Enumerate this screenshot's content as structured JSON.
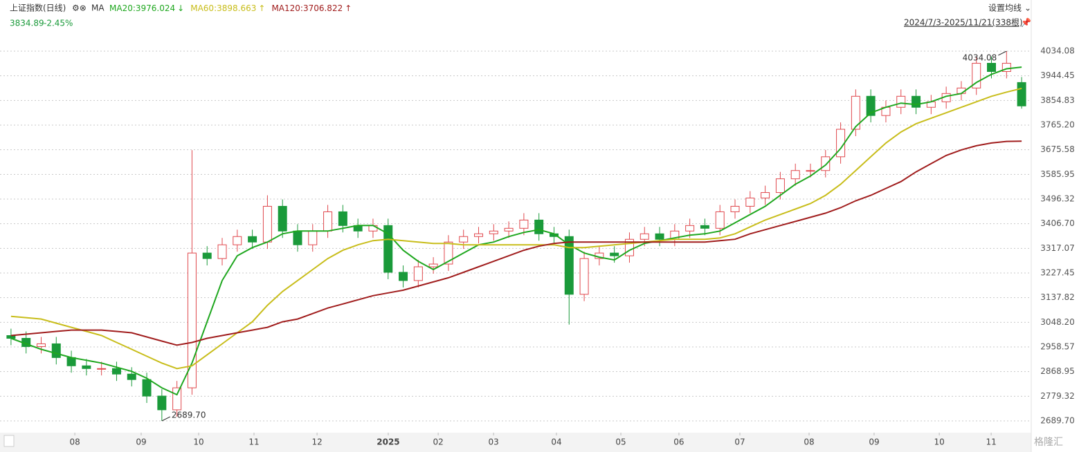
{
  "chart_data": {
    "type": "candlestick",
    "title": "上证指数(日线)",
    "ma_label": "MA",
    "price": 3834.89,
    "change": {
      "value": -2.45,
      "label": "-2.45%"
    },
    "settings_button": "设置均线",
    "date_range": "2024/7/3-2025/11/21(338根)",
    "watermark": "格隆汇",
    "up_color": "#e0474c",
    "down_color": "#1a9a3a",
    "grid": true,
    "xlim": [
      0,
      68
    ],
    "xticks": [
      {
        "value": 4.73,
        "label": "08"
      },
      {
        "value": 9.13,
        "label": "09"
      },
      {
        "value": 12.94,
        "label": "10"
      },
      {
        "value": 16.61,
        "label": "11"
      },
      {
        "value": 20.79,
        "label": "12"
      },
      {
        "value": 25.51,
        "label": "2025"
      },
      {
        "value": 28.82,
        "label": "02"
      },
      {
        "value": 32.49,
        "label": "03"
      },
      {
        "value": 36.66,
        "label": "04"
      },
      {
        "value": 40.93,
        "label": "05"
      },
      {
        "value": 44.78,
        "label": "06"
      },
      {
        "value": 48.82,
        "label": "07"
      },
      {
        "value": 53.41,
        "label": "08"
      },
      {
        "value": 57.72,
        "label": "09"
      },
      {
        "value": 62.04,
        "label": "10"
      },
      {
        "value": 65.48,
        "label": "11"
      }
    ],
    "ylim": [
      2649.5,
      4099.4
    ],
    "yticks": [
      4034.08,
      3944.45,
      3854.83,
      {
        "value": 3765.2,
        "label": "3765.20"
      },
      3675.58,
      3585.95,
      3496.32,
      {
        "value": 3406.7,
        "label": "3406.70"
      },
      3317.07,
      3227.45,
      3137.82,
      {
        "value": 3048.2,
        "label": "3048.20"
      },
      2958.57,
      2868.95,
      2779.32,
      {
        "value": 2689.7,
        "label": "2689.70"
      }
    ],
    "candles": {
      "open": [
        3000,
        2990,
        2960,
        2970,
        2920,
        2890,
        2880,
        2880,
        2860,
        2840,
        2780,
        2730,
        2810,
        3300,
        3280,
        3330,
        3360,
        3340,
        3470,
        3380,
        3330,
        3380,
        3450,
        3400,
        3380,
        3400,
        3230,
        3200,
        3250,
        3260,
        3340,
        3360,
        3370,
        3380,
        3390,
        3420,
        3370,
        3360,
        3150,
        3280,
        3300,
        3290,
        3350,
        3370,
        3350,
        3380,
        3400,
        3390,
        3450,
        3470,
        3500,
        3520,
        3570,
        3600,
        3600,
        3650,
        3750,
        3870,
        3800,
        3830,
        3870,
        3830,
        3850,
        3880,
        3900,
        3990,
        3960,
        3920
      ],
      "high": [
        3025,
        3015,
        2995,
        2995,
        2945,
        2915,
        2905,
        2905,
        2885,
        2865,
        2805,
        2835,
        3674,
        3325,
        3355,
        3385,
        3385,
        3510,
        3495,
        3405,
        3405,
        3475,
        3475,
        3425,
        3425,
        3425,
        3255,
        3275,
        3285,
        3365,
        3385,
        3395,
        3405,
        3415,
        3445,
        3445,
        3395,
        3385,
        3305,
        3325,
        3325,
        3375,
        3395,
        3395,
        3405,
        3425,
        3425,
        3475,
        3495,
        3525,
        3545,
        3595,
        3625,
        3625,
        3675,
        3775,
        3895,
        3895,
        3855,
        3895,
        3895,
        3875,
        3905,
        3925,
        4015,
        4015,
        4034.08,
        3940
      ],
      "low": [
        2965,
        2935,
        2935,
        2895,
        2865,
        2855,
        2855,
        2835,
        2815,
        2755,
        2689.7,
        2705,
        2785,
        3255,
        3255,
        3305,
        3315,
        3315,
        3355,
        3305,
        3305,
        3355,
        3375,
        3355,
        3355,
        3205,
        3175,
        3175,
        3225,
        3235,
        3315,
        3335,
        3345,
        3355,
        3365,
        3345,
        3335,
        3040,
        3125,
        3255,
        3265,
        3265,
        3325,
        3325,
        3325,
        3355,
        3365,
        3365,
        3425,
        3445,
        3475,
        3495,
        3545,
        3575,
        3575,
        3625,
        3725,
        3775,
        3775,
        3805,
        3805,
        3805,
        3825,
        3855,
        3875,
        3935,
        3935,
        3825
      ],
      "close": [
        2990,
        2960,
        2970,
        2920,
        2890,
        2880,
        2880,
        2860,
        2840,
        2780,
        2730,
        2810,
        3300,
        3280,
        3330,
        3360,
        3340,
        3470,
        3380,
        3330,
        3380,
        3450,
        3400,
        3380,
        3400,
        3230,
        3200,
        3250,
        3260,
        3340,
        3360,
        3370,
        3380,
        3390,
        3420,
        3370,
        3360,
        3150,
        3280,
        3300,
        3290,
        3350,
        3370,
        3350,
        3380,
        3400,
        3390,
        3450,
        3470,
        3500,
        3520,
        3570,
        3600,
        3600,
        3650,
        3750,
        3870,
        3800,
        3830,
        3870,
        3830,
        3850,
        3880,
        3900,
        3990,
        3960,
        3990,
        3834.89
      ]
    },
    "series": [
      {
        "name": "MA20",
        "color": "#1fa71f",
        "trend": "↓",
        "values": [
          2990,
          2970,
          2950,
          2935,
          2920,
          2910,
          2900,
          2885,
          2870,
          2845,
          2810,
          2785,
          2900,
          3050,
          3200,
          3290,
          3320,
          3340,
          3370,
          3380,
          3380,
          3380,
          3390,
          3400,
          3400,
          3370,
          3310,
          3270,
          3240,
          3270,
          3300,
          3330,
          3340,
          3360,
          3375,
          3385,
          3370,
          3330,
          3300,
          3285,
          3275,
          3310,
          3335,
          3345,
          3355,
          3365,
          3370,
          3380,
          3410,
          3440,
          3470,
          3510,
          3550,
          3580,
          3620,
          3680,
          3760,
          3810,
          3830,
          3845,
          3840,
          3850,
          3870,
          3880,
          3920,
          3950,
          3970,
          3976.024
        ]
      },
      {
        "name": "MA60",
        "color": "#c8bd1a",
        "trend": "↑",
        "values": [
          3070,
          3065,
          3060,
          3045,
          3030,
          3015,
          3000,
          2975,
          2950,
          2925,
          2900,
          2880,
          2890,
          2930,
          2970,
          3010,
          3050,
          3110,
          3160,
          3200,
          3240,
          3280,
          3310,
          3330,
          3345,
          3350,
          3345,
          3340,
          3335,
          3335,
          3330,
          3330,
          3330,
          3330,
          3330,
          3330,
          3330,
          3320,
          3320,
          3325,
          3330,
          3335,
          3340,
          3345,
          3350,
          3350,
          3350,
          3355,
          3370,
          3395,
          3420,
          3440,
          3460,
          3480,
          3510,
          3550,
          3600,
          3650,
          3700,
          3740,
          3770,
          3790,
          3810,
          3830,
          3850,
          3870,
          3885,
          3898.663
        ]
      },
      {
        "name": "MA120",
        "color": "#a01c1c",
        "trend": "↑",
        "values": [
          3000,
          3005,
          3010,
          3015,
          3020,
          3020,
          3020,
          3015,
          3010,
          2995,
          2980,
          2965,
          2975,
          2990,
          3000,
          3010,
          3020,
          3030,
          3050,
          3060,
          3080,
          3100,
          3115,
          3130,
          3145,
          3155,
          3165,
          3180,
          3195,
          3210,
          3230,
          3250,
          3270,
          3290,
          3310,
          3325,
          3335,
          3340,
          3340,
          3340,
          3340,
          3340,
          3340,
          3340,
          3340,
          3340,
          3340,
          3345,
          3350,
          3370,
          3385,
          3400,
          3415,
          3430,
          3445,
          3465,
          3490,
          3510,
          3535,
          3560,
          3595,
          3625,
          3655,
          3675,
          3690,
          3700,
          3706,
          3706.822
        ]
      }
    ],
    "annotations": [
      {
        "x": 10,
        "value": 2689.7,
        "label": "2689.70"
      },
      {
        "x": 66,
        "value": 4034.08,
        "label": "4034.08"
      }
    ]
  }
}
